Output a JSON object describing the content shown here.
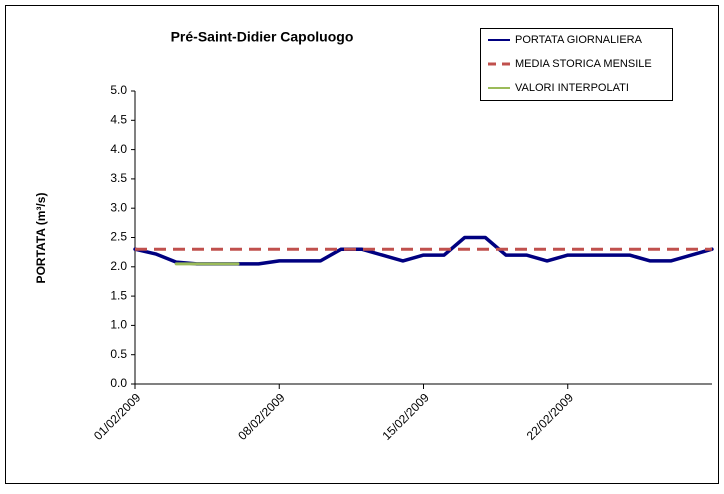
{
  "chart_data": {
    "type": "line",
    "title": "Pré-Saint-Didier  Capoluogo",
    "ylabel": "PORTATA (m³/s)",
    "categories": [
      "01/02/2009",
      null,
      null,
      null,
      null,
      null,
      null,
      "08/02/2009",
      null,
      null,
      null,
      null,
      null,
      null,
      "15/02/2009",
      null,
      null,
      null,
      null,
      null,
      null,
      "22/02/2009",
      null,
      null,
      null,
      null,
      null,
      null,
      null
    ],
    "series": [
      {
        "name": "PORTATA GIORNALIERA",
        "color": "#000080",
        "style": "solid",
        "width": 3.5,
        "values": [
          2.3,
          2.22,
          2.08,
          2.05,
          2.05,
          2.05,
          2.05,
          2.1,
          2.1,
          2.1,
          2.3,
          2.3,
          2.2,
          2.1,
          2.2,
          2.2,
          2.5,
          2.5,
          2.2,
          2.2,
          2.1,
          2.2,
          2.2,
          2.2,
          2.2,
          2.1,
          2.1,
          2.2,
          2.3
        ]
      },
      {
        "name": "MEDIA STORICA MENSILE",
        "color": "#c0504d",
        "style": "dashed",
        "width": 3,
        "values": [
          2.3,
          2.3,
          2.3,
          2.3,
          2.3,
          2.3,
          2.3,
          2.3,
          2.3,
          2.3,
          2.3,
          2.3,
          2.3,
          2.3,
          2.3,
          2.3,
          2.3,
          2.3,
          2.3,
          2.3,
          2.3,
          2.3,
          2.3,
          2.3,
          2.3,
          2.3,
          2.3,
          2.3,
          2.3
        ]
      },
      {
        "name": "VALORI INTERPOLATI",
        "color": "#9bbb59",
        "style": "solid",
        "width": 3,
        "values": [
          null,
          null,
          2.05,
          2.05,
          2.05,
          2.05,
          null,
          null,
          null,
          null,
          null,
          null,
          null,
          null,
          null,
          null,
          null,
          null,
          null,
          null,
          null,
          null,
          null,
          null,
          null,
          null,
          null,
          null,
          null
        ]
      }
    ],
    "ylim": [
      0,
      5
    ],
    "yticks": [
      {
        "value": 0,
        "label": "0.0"
      },
      0.5,
      {
        "value": 1,
        "label": "1.0"
      },
      1.5,
      {
        "value": 2,
        "label": "2.0"
      },
      2.5,
      {
        "value": 3,
        "label": "3.0"
      },
      3.5,
      {
        "value": 4,
        "label": "4.0"
      },
      4.5,
      {
        "value": 5,
        "label": "5.0"
      }
    ],
    "legend": "top-right"
  }
}
